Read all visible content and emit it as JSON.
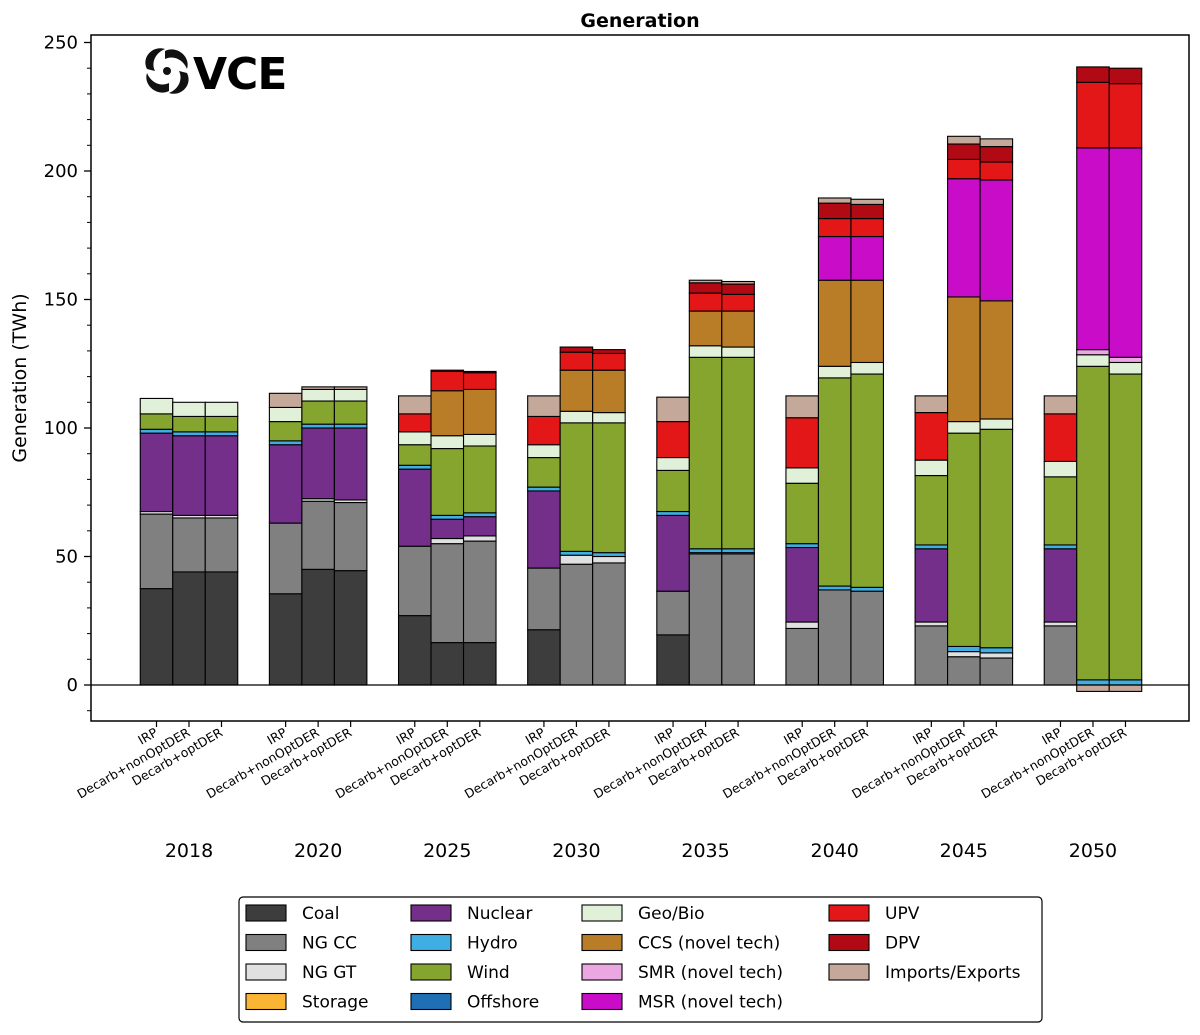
{
  "chart_data": {
    "type": "bar",
    "stacked": true,
    "title": "Generation",
    "ylabel": "Generation (TWh)",
    "ylim": [
      -12,
      253
    ],
    "yticks": [
      0,
      50,
      100,
      150,
      200,
      250
    ],
    "logo": "VCE",
    "legend_position": "bottom",
    "groups": [
      "2018",
      "2020",
      "2025",
      "2030",
      "2035",
      "2040",
      "2045",
      "2050"
    ],
    "scenarios": [
      "IRP",
      "Decarb+nonOptDER",
      "Decarb+optDER"
    ],
    "series": [
      {
        "name": "Coal",
        "color": "#3d3d3d"
      },
      {
        "name": "NG CC",
        "color": "#808080"
      },
      {
        "name": "NG GT",
        "color": "#e0e0e0"
      },
      {
        "name": "Storage",
        "color": "#fbb534"
      },
      {
        "name": "Nuclear",
        "color": "#742f8b"
      },
      {
        "name": "Hydro",
        "color": "#3eaee3"
      },
      {
        "name": "Wind",
        "color": "#86a52e"
      },
      {
        "name": "Offshore",
        "color": "#1f6fb4"
      },
      {
        "name": "Geo/Bio",
        "color": "#e1f0d8"
      },
      {
        "name": "CCS (novel tech)",
        "color": "#b87d26"
      },
      {
        "name": "SMR (novel tech)",
        "color": "#eaa7e1"
      },
      {
        "name": "MSR (novel tech)",
        "color": "#c80cc8"
      },
      {
        "name": "UPV",
        "color": "#e31717"
      },
      {
        "name": "DPV",
        "color": "#b20a14"
      },
      {
        "name": "Imports/Exports",
        "color": "#c4a99b"
      }
    ],
    "legend_columns": [
      [
        "Coal",
        "NG CC",
        "NG GT",
        "Storage"
      ],
      [
        "Nuclear",
        "Hydro",
        "Wind",
        "Offshore"
      ],
      [
        "Geo/Bio",
        "CCS (novel tech)",
        "SMR (novel tech)",
        "MSR (novel tech)"
      ],
      [
        "UPV",
        "DPV",
        "Imports/Exports"
      ]
    ],
    "bars": [
      {
        "group": "2018",
        "scenario": "IRP",
        "values": {
          "Coal": 37.5,
          "NG CC": 29,
          "NG GT": 1,
          "Nuclear": 30.5,
          "Hydro": 1.5,
          "Wind": 6,
          "Geo/Bio": 6
        }
      },
      {
        "group": "2018",
        "scenario": "Decarb+nonOptDER",
        "values": {
          "Coal": 44,
          "NG CC": 21,
          "NG GT": 1,
          "Nuclear": 31,
          "Hydro": 1.5,
          "Wind": 6,
          "Geo/Bio": 5.5
        }
      },
      {
        "group": "2018",
        "scenario": "Decarb+optDER",
        "values": {
          "Coal": 44,
          "NG CC": 21,
          "NG GT": 1,
          "Nuclear": 31,
          "Hydro": 1.5,
          "Wind": 6,
          "Geo/Bio": 5.5
        }
      },
      {
        "group": "2020",
        "scenario": "IRP",
        "values": {
          "Coal": 35.5,
          "NG CC": 27.5,
          "Nuclear": 30.5,
          "Hydro": 1.5,
          "Wind": 7.5,
          "Geo/Bio": 5.5,
          "Imports/Exports": 5.5
        }
      },
      {
        "group": "2020",
        "scenario": "Decarb+nonOptDER",
        "values": {
          "Coal": 45,
          "NG CC": 26.5,
          "NG GT": 1,
          "Nuclear": 27.5,
          "Hydro": 1.5,
          "Wind": 9,
          "Geo/Bio": 4.5,
          "Imports/Exports": 1
        }
      },
      {
        "group": "2020",
        "scenario": "Decarb+optDER",
        "values": {
          "Coal": 44.5,
          "NG CC": 26.5,
          "NG GT": 1,
          "Nuclear": 28,
          "Hydro": 1.5,
          "Wind": 9,
          "Geo/Bio": 4.5,
          "Imports/Exports": 1
        }
      },
      {
        "group": "2025",
        "scenario": "IRP",
        "values": {
          "Coal": 27,
          "NG CC": 27,
          "Nuclear": 30,
          "Hydro": 1.5,
          "Wind": 8,
          "Geo/Bio": 5,
          "UPV": 7,
          "Imports/Exports": 7
        }
      },
      {
        "group": "2025",
        "scenario": "Decarb+nonOptDER",
        "values": {
          "Coal": 16.5,
          "NG CC": 38.5,
          "NG GT": 2,
          "Nuclear": 7.5,
          "Hydro": 1.5,
          "Wind": 26,
          "Geo/Bio": 5,
          "CCS (novel tech)": 17.5,
          "UPV": 7.5,
          "DPV": 0.5
        }
      },
      {
        "group": "2025",
        "scenario": "Decarb+optDER",
        "values": {
          "Coal": 16.5,
          "NG CC": 39.5,
          "NG GT": 2,
          "Nuclear": 7.5,
          "Hydro": 1.5,
          "Wind": 26,
          "Geo/Bio": 4.5,
          "CCS (novel tech)": 17.5,
          "UPV": 6.5,
          "DPV": 0.5
        }
      },
      {
        "group": "2030",
        "scenario": "IRP",
        "values": {
          "Coal": 21.5,
          "NG CC": 24,
          "Nuclear": 30,
          "Hydro": 1.5,
          "Wind": 11.5,
          "Geo/Bio": 5,
          "UPV": 11,
          "Imports/Exports": 8
        }
      },
      {
        "group": "2030",
        "scenario": "Decarb+nonOptDER",
        "values": {
          "NG CC": 47,
          "NG GT": 3.5,
          "Hydro": 1.5,
          "Wind": 50,
          "Geo/Bio": 4.5,
          "CCS (novel tech)": 16,
          "UPV": 7,
          "DPV": 2
        }
      },
      {
        "group": "2030",
        "scenario": "Decarb+optDER",
        "values": {
          "NG CC": 47.5,
          "NG GT": 2.5,
          "Hydro": 1.5,
          "Wind": 50.5,
          "Geo/Bio": 4,
          "CCS (novel tech)": 16.5,
          "UPV": 6.5,
          "DPV": 1.5
        }
      },
      {
        "group": "2035",
        "scenario": "IRP",
        "values": {
          "Coal": 19.5,
          "NG CC": 17,
          "Nuclear": 29.5,
          "Hydro": 1.5,
          "Wind": 16,
          "Geo/Bio": 5,
          "UPV": 14,
          "Imports/Exports": 9.5
        }
      },
      {
        "group": "2035",
        "scenario": "Decarb+nonOptDER",
        "values": {
          "NG CC": 51,
          "NG GT": 0.5,
          "Hydro": 1.5,
          "Wind": 74.5,
          "Geo/Bio": 4.5,
          "CCS (novel tech)": 13.5,
          "UPV": 7,
          "DPV": 4,
          "Imports/Exports": 1
        }
      },
      {
        "group": "2035",
        "scenario": "Decarb+optDER",
        "values": {
          "NG CC": 51,
          "NG GT": 0.5,
          "Hydro": 1.5,
          "Wind": 74.5,
          "Geo/Bio": 4,
          "CCS (novel tech)": 14,
          "UPV": 6.5,
          "DPV": 4,
          "Imports/Exports": 1
        }
      },
      {
        "group": "2040",
        "scenario": "IRP",
        "values": {
          "NG CC": 22,
          "NG GT": 2.5,
          "Nuclear": 29,
          "Hydro": 1.5,
          "Wind": 23.5,
          "Geo/Bio": 6,
          "UPV": 19.5,
          "Imports/Exports": 8.5
        }
      },
      {
        "group": "2040",
        "scenario": "Decarb+nonOptDER",
        "values": {
          "NG CC": 37,
          "Hydro": 1.5,
          "Wind": 81,
          "Geo/Bio": 4.5,
          "CCS (novel tech)": 33.5,
          "MSR (novel tech)": 17,
          "UPV": 7,
          "DPV": 6,
          "Imports/Exports": 2
        }
      },
      {
        "group": "2040",
        "scenario": "Decarb+optDER",
        "values": {
          "NG CC": 36.5,
          "Hydro": 1.5,
          "Wind": 83,
          "Geo/Bio": 4.5,
          "CCS (novel tech)": 32,
          "MSR (novel tech)": 17,
          "UPV": 7,
          "DPV": 5.5,
          "Imports/Exports": 2
        }
      },
      {
        "group": "2045",
        "scenario": "IRP",
        "values": {
          "NG CC": 23,
          "NG GT": 1.5,
          "Nuclear": 28.5,
          "Hydro": 1.5,
          "Wind": 27,
          "Geo/Bio": 6,
          "UPV": 18.5,
          "Imports/Exports": 6.5
        }
      },
      {
        "group": "2045",
        "scenario": "Decarb+nonOptDER",
        "values": {
          "NG CC": 11,
          "NG GT": 2,
          "Hydro": 2,
          "Wind": 83,
          "Geo/Bio": 4.5,
          "CCS (novel tech)": 48.5,
          "MSR (novel tech)": 46,
          "UPV": 7.5,
          "DPV": 6,
          "Imports/Exports": 3
        }
      },
      {
        "group": "2045",
        "scenario": "Decarb+optDER",
        "values": {
          "NG CC": 10.5,
          "NG GT": 2,
          "Hydro": 2,
          "Wind": 85,
          "Geo/Bio": 4,
          "CCS (novel tech)": 46,
          "MSR (novel tech)": 47,
          "UPV": 7,
          "DPV": 6,
          "Imports/Exports": 3
        }
      },
      {
        "group": "2050",
        "scenario": "IRP",
        "values": {
          "NG CC": 23,
          "NG GT": 1.5,
          "Nuclear": 28.5,
          "Hydro": 1.5,
          "Wind": 26.5,
          "Geo/Bio": 6,
          "UPV": 18.5,
          "Imports/Exports": 7
        }
      },
      {
        "group": "2050",
        "scenario": "Decarb+nonOptDER",
        "values": {
          "Imports/Exports": -2.5,
          "Hydro": 2,
          "Wind": 122,
          "Geo/Bio": 4.5,
          "SMR (novel tech)": 2,
          "MSR (novel tech)": 78.5,
          "UPV": 25.5,
          "DPV": 6
        }
      },
      {
        "group": "2050",
        "scenario": "Decarb+optDER",
        "values": {
          "Imports/Exports": -2.5,
          "Hydro": 2,
          "Wind": 119,
          "Geo/Bio": 4.5,
          "SMR (novel tech)": 2,
          "MSR (novel tech)": 81.5,
          "UPV": 25,
          "DPV": 6
        }
      }
    ]
  }
}
